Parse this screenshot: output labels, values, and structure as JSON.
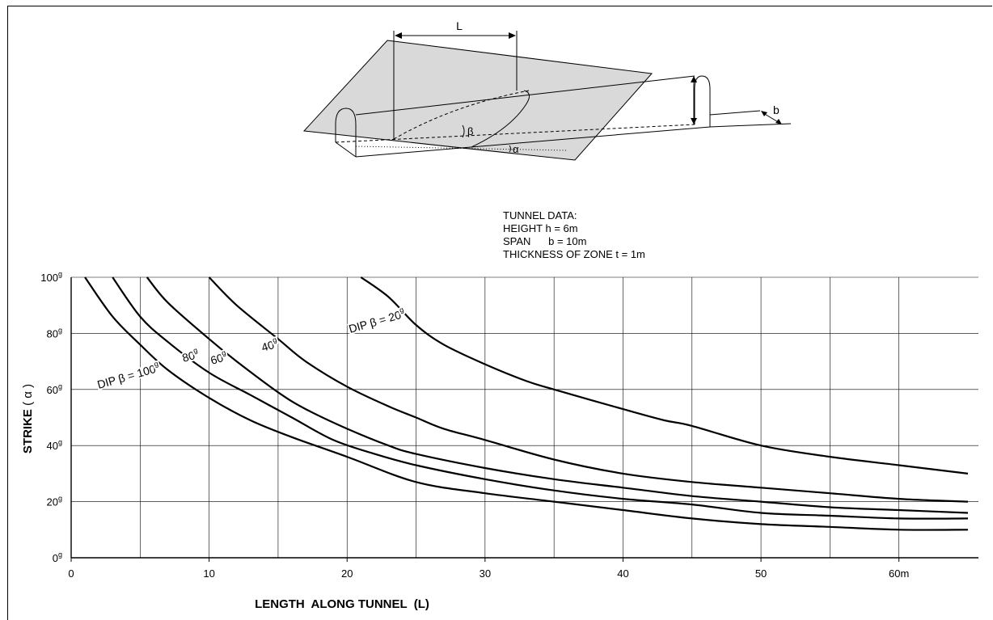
{
  "chart_data": {
    "type": "line",
    "title": "",
    "xlabel": "LENGTH  ALONG TUNNEL  (L)",
    "ylabel": "STRIKE",
    "ylabel_symbol": "α",
    "xlim": [
      0,
      65
    ],
    "ylim": [
      0,
      100
    ],
    "x_ticks": [
      0,
      10,
      20,
      30,
      40,
      50,
      60
    ],
    "x_tick_labels": [
      "0",
      "10",
      "20",
      "30",
      "40",
      "50",
      "60m"
    ],
    "y_ticks": [
      0,
      20,
      40,
      60,
      80,
      100
    ],
    "y_tick_unit": "g",
    "grid": true,
    "grid_x": [
      5,
      10,
      15,
      20,
      25,
      30,
      35,
      40,
      45,
      50,
      55,
      60
    ],
    "series": [
      {
        "name": "DIP β = 100",
        "label_prefix": "DIP β = ",
        "label_value": "100",
        "label_unit": "g",
        "x": [
          1,
          3,
          5,
          7,
          10,
          13,
          16,
          20,
          25,
          30,
          35,
          40,
          45,
          50,
          55,
          60,
          65
        ],
        "y": [
          100,
          86,
          76,
          67,
          57,
          49,
          43,
          36,
          27,
          23,
          20,
          17,
          14,
          12,
          11,
          10,
          10
        ]
      },
      {
        "name": "80",
        "label_prefix": "",
        "label_value": "80",
        "label_unit": "g",
        "x": [
          3,
          5,
          7,
          10,
          13,
          16,
          19,
          22,
          25,
          30,
          35,
          40,
          45,
          50,
          55,
          60,
          65
        ],
        "y": [
          100,
          86,
          77,
          66,
          58,
          50,
          42,
          37,
          33,
          28,
          24,
          21,
          19,
          16,
          15,
          14,
          14
        ]
      },
      {
        "name": "60",
        "label_prefix": "",
        "label_value": "60",
        "label_unit": "g",
        "x": [
          5.5,
          7,
          10,
          12,
          15,
          17,
          20,
          23,
          25,
          30,
          35,
          40,
          45,
          50,
          55,
          60,
          65
        ],
        "y": [
          100,
          91,
          78,
          70,
          59,
          53,
          46,
          40,
          37,
          32,
          28,
          25,
          22,
          20,
          18,
          17,
          16
        ]
      },
      {
        "name": "40",
        "label_prefix": "",
        "label_value": "40",
        "label_unit": "g",
        "x": [
          10,
          12,
          15,
          17,
          20,
          23,
          25,
          27,
          30,
          35,
          40,
          45,
          50,
          55,
          60,
          65
        ],
        "y": [
          100,
          90,
          78,
          70,
          61,
          54,
          50,
          46,
          42,
          35,
          30,
          27,
          25,
          23,
          21,
          20
        ]
      },
      {
        "name": "DIP β = 20",
        "label_prefix": "DIP β = ",
        "label_value": "20",
        "label_unit": "g",
        "x": [
          21,
          23,
          25,
          27,
          30,
          33,
          35,
          40,
          43,
          45,
          50,
          55,
          60,
          65
        ],
        "y": [
          100,
          93,
          83,
          76,
          69,
          63,
          60,
          53,
          49,
          47,
          40,
          36,
          33,
          30
        ]
      }
    ]
  },
  "tunnel_data": {
    "heading": "TUNNEL DATA:",
    "height": "HEIGHT  h = 6m",
    "span": "SPAN      b = 10m",
    "thickness": "THICKNESS OF ZONE  t = 1m"
  },
  "sketch": {
    "label_L": "L",
    "label_b": "b",
    "label_beta": "β",
    "label_alpha": "α"
  }
}
